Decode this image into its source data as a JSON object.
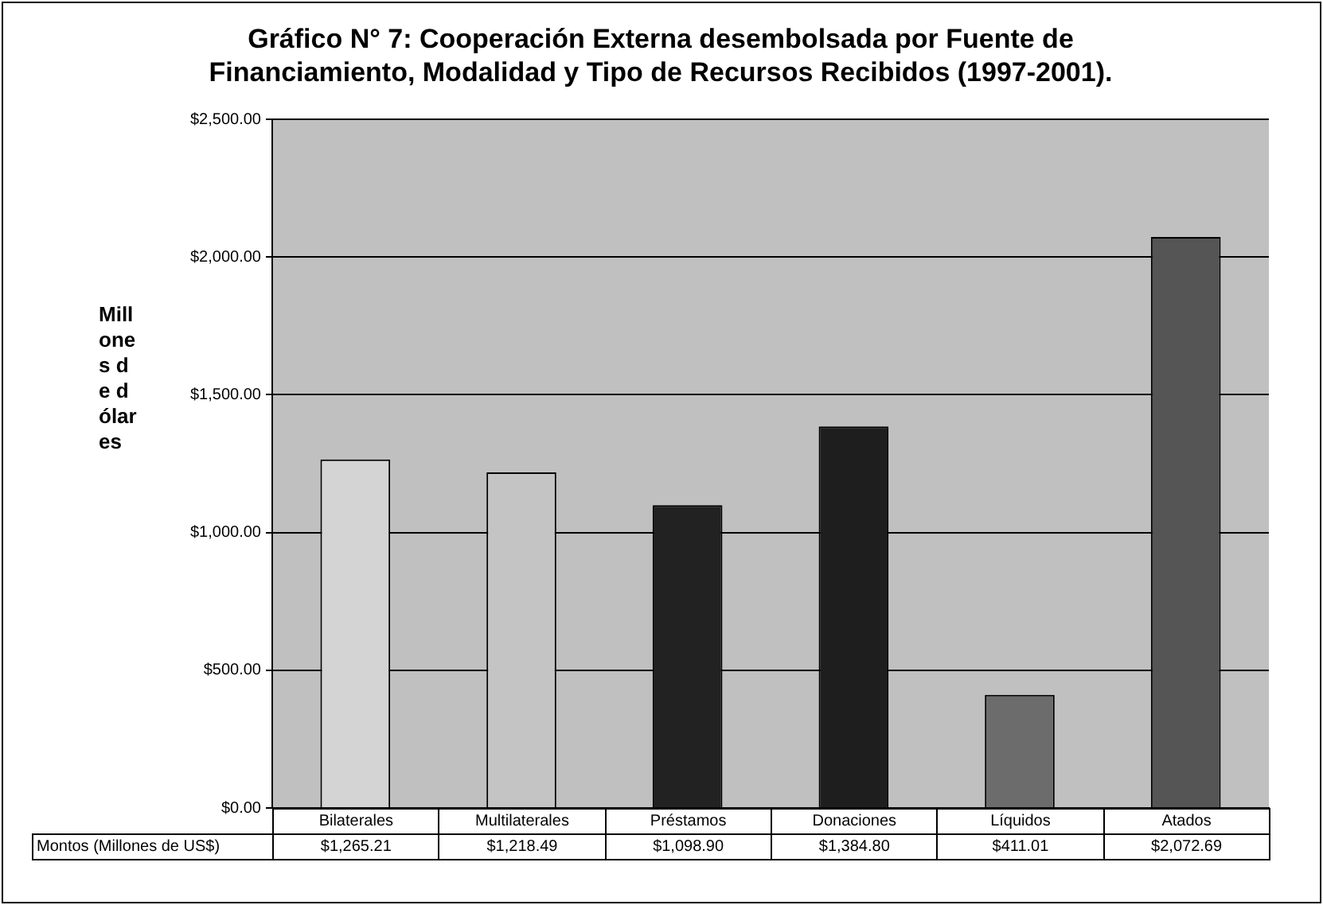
{
  "chart_data": {
    "type": "bar",
    "title": "Gráfico N° 7: Cooperación Externa desembolsada por Fuente de Financiamiento, Modalidad y Tipo de Recursos Recibidos (1997-2001).",
    "ylabel": "Millones de dólares",
    "categories": [
      "Bilaterales",
      "Multilaterales",
      "Préstamos",
      "Donaciones",
      "Líquidos",
      "Atados"
    ],
    "series": [
      {
        "name": "Montos (Millones de US$)",
        "colors": [
          "#d4d4d4",
          "#c4c4c4",
          "#222222",
          "#1e1e1e",
          "#6c6c6c",
          "#555555"
        ],
        "values": [
          1265.21,
          1218.49,
          1098.9,
          1384.8,
          411.01,
          2072.69
        ],
        "value_labels": [
          "$1,265.21",
          "$1,218.49",
          "$1,098.90",
          "$1,384.80",
          "$411.01",
          "$2,072.69"
        ]
      }
    ],
    "ylim": [
      0,
      2500
    ],
    "yticks": [
      {
        "value": 0,
        "label": "$0.00"
      },
      {
        "value": 500,
        "label": "$500.00"
      },
      {
        "value": 1000,
        "label": "$1,000.00"
      },
      {
        "value": 1500,
        "label": "$1,500.00"
      },
      {
        "value": 2000,
        "label": "$2,000.00"
      },
      {
        "value": 2500,
        "label": "$2,500.00"
      }
    ],
    "grid": "y"
  }
}
